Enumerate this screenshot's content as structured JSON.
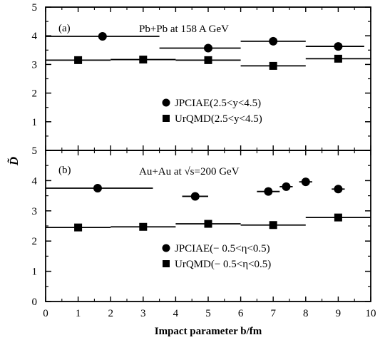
{
  "chart_data": [
    {
      "type": "scatter",
      "panel_label": "(a)",
      "title": "Pb+Pb at 158 A GeV",
      "ylim": [
        0,
        5
      ],
      "yticks": [
        "0",
        "1",
        "2",
        "3",
        "4",
        "5"
      ],
      "legend_position": "lower-right",
      "series": [
        {
          "name": "JPCIAE(2.5<y<4.5)",
          "marker": "circle",
          "points": [
            {
              "x": 1.75,
              "y": 3.98,
              "xerr": [
                0,
                3.5
              ]
            },
            {
              "x": 5.0,
              "y": 3.57,
              "xerr": [
                3.5,
                6.0
              ]
            },
            {
              "x": 7.0,
              "y": 3.81,
              "xerr": [
                6.0,
                8.0
              ]
            },
            {
              "x": 9.0,
              "y": 3.63,
              "xerr": [
                8.0,
                9.8
              ]
            }
          ]
        },
        {
          "name": "UrQMD(2.5<y<4.5)",
          "marker": "square",
          "points": [
            {
              "x": 1.0,
              "y": 3.15,
              "xerr": [
                0,
                2.0
              ]
            },
            {
              "x": 3.0,
              "y": 3.17,
              "xerr": [
                2.0,
                4.0
              ]
            },
            {
              "x": 5.0,
              "y": 3.15,
              "xerr": [
                4.0,
                6.0
              ]
            },
            {
              "x": 7.0,
              "y": 2.95,
              "xerr": [
                6.0,
                8.0
              ]
            },
            {
              "x": 9.0,
              "y": 3.2,
              "xerr": [
                8.0,
                10.0
              ]
            }
          ]
        }
      ]
    },
    {
      "type": "scatter",
      "panel_label": "(b)",
      "title": "Au+Au at √s=200 GeV",
      "ylim": [
        0,
        5
      ],
      "yticks": [
        "0",
        "1",
        "2",
        "3",
        "4",
        "5"
      ],
      "xlim": [
        0,
        10
      ],
      "xticks": [
        "0",
        "1",
        "2",
        "3",
        "4",
        "5",
        "6",
        "7",
        "8",
        "9",
        "10"
      ],
      "xlabel": "Impact parameter b/fm",
      "legend_position": "lower-right",
      "series": [
        {
          "name": "JPCIAE(− 0.5<η<0.5)",
          "marker": "circle",
          "points": [
            {
              "x": 1.6,
              "y": 3.75,
              "xerr": [
                0,
                3.3
              ]
            },
            {
              "x": 4.6,
              "y": 3.48,
              "xerr": [
                4.2,
                5.0
              ]
            },
            {
              "x": 6.85,
              "y": 3.64,
              "xerr": [
                6.5,
                7.2
              ]
            },
            {
              "x": 7.4,
              "y": 3.8,
              "xerr": [
                7.2,
                7.6
              ]
            },
            {
              "x": 8.0,
              "y": 3.96,
              "xerr": [
                7.8,
                8.2
              ]
            },
            {
              "x": 9.0,
              "y": 3.72,
              "xerr": [
                8.8,
                9.2
              ]
            }
          ]
        },
        {
          "name": "UrQMD(− 0.5<η<0.5)",
          "marker": "square",
          "points": [
            {
              "x": 1.0,
              "y": 2.45,
              "xerr": [
                0,
                2.0
              ]
            },
            {
              "x": 3.0,
              "y": 2.47,
              "xerr": [
                2.0,
                4.0
              ]
            },
            {
              "x": 5.0,
              "y": 2.57,
              "xerr": [
                4.0,
                6.0
              ]
            },
            {
              "x": 7.0,
              "y": 2.53,
              "xerr": [
                6.0,
                8.0
              ]
            },
            {
              "x": 9.0,
              "y": 2.78,
              "xerr": [
                8.0,
                10.0
              ]
            }
          ]
        }
      ]
    }
  ],
  "shared_ylabel": "D̃"
}
